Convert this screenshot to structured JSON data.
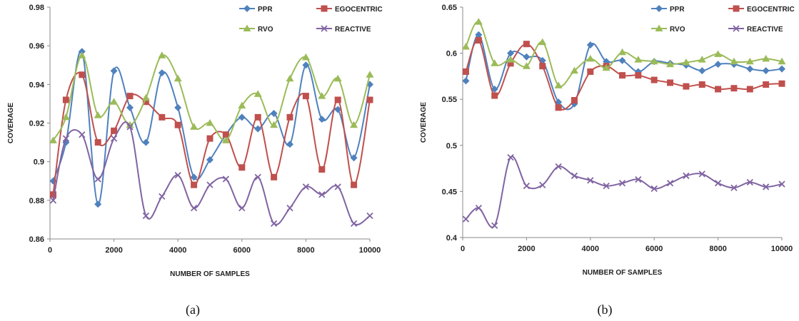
{
  "chart_data": [
    {
      "type": "line",
      "caption": "(a)",
      "xlabel": "NUMBER OF SAMPLES",
      "ylabel": "COVERAGE",
      "xlim": [
        0,
        10000
      ],
      "ylim": [
        0.86,
        0.98
      ],
      "xticks": [
        0,
        2000,
        4000,
        6000,
        8000,
        10000
      ],
      "xtick_labels": [
        "0",
        "2000",
        "4000",
        "6000",
        "8000",
        "10000"
      ],
      "yticks": [
        0.86,
        0.88,
        0.9,
        0.92,
        0.94,
        0.96,
        0.98
      ],
      "ytick_labels": [
        "0.86",
        "0.88",
        "0.9",
        "0.92",
        "0.94",
        "0.96",
        "0.98"
      ],
      "grid": false,
      "legend_position": "top-right",
      "x": [
        100,
        500,
        1000,
        1500,
        2000,
        2500,
        3000,
        3500,
        4000,
        4500,
        5000,
        5500,
        6000,
        6500,
        7000,
        7500,
        8000,
        8500,
        9000,
        9500,
        10000
      ],
      "series": [
        {
          "name": "PPR",
          "color": "#4f81bd",
          "marker": "diamond",
          "values": [
            0.89,
            0.91,
            0.957,
            0.878,
            0.947,
            0.928,
            0.91,
            0.946,
            0.928,
            0.892,
            0.901,
            0.914,
            0.923,
            0.917,
            0.925,
            0.909,
            0.95,
            0.922,
            0.927,
            0.902,
            0.94
          ]
        },
        {
          "name": "EGOCENTRIC",
          "color": "#c0504d",
          "marker": "square",
          "values": [
            0.883,
            0.932,
            0.945,
            0.91,
            0.916,
            0.934,
            0.931,
            0.923,
            0.919,
            0.888,
            0.912,
            0.914,
            0.897,
            0.923,
            0.892,
            0.923,
            0.934,
            0.896,
            0.932,
            0.888,
            0.932
          ]
        },
        {
          "name": "RVO",
          "color": "#9bbb59",
          "marker": "triangle",
          "values": [
            0.911,
            0.923,
            0.955,
            0.924,
            0.931,
            0.919,
            0.933,
            0.955,
            0.943,
            0.918,
            0.92,
            0.911,
            0.929,
            0.935,
            0.919,
            0.943,
            0.954,
            0.934,
            0.943,
            0.919,
            0.945
          ]
        },
        {
          "name": "REACTIVE",
          "color": "#8064a2",
          "marker": "x",
          "values": [
            0.88,
            0.912,
            0.914,
            0.891,
            0.912,
            0.918,
            0.872,
            0.882,
            0.893,
            0.876,
            0.888,
            0.891,
            0.876,
            0.892,
            0.868,
            0.876,
            0.887,
            0.883,
            0.887,
            0.868,
            0.872
          ]
        }
      ]
    },
    {
      "type": "line",
      "caption": "(b)",
      "xlabel": "NUMBER OF SAMPLES",
      "ylabel": "COVERAGE",
      "xlim": [
        0,
        10000
      ],
      "ylim": [
        0.4,
        0.65
      ],
      "xticks": [
        0,
        2000,
        4000,
        6000,
        8000,
        10000
      ],
      "xtick_labels": [
        "0",
        "2000",
        "4000",
        "6000",
        "8000",
        "10000"
      ],
      "yticks": [
        0.4,
        0.45,
        0.5,
        0.55,
        0.6,
        0.65
      ],
      "ytick_labels": [
        "0.4",
        "0.45",
        "0.5",
        "0.55",
        "0.6",
        "0.65"
      ],
      "grid": false,
      "legend_position": "top-right",
      "x": [
        100,
        500,
        1000,
        1500,
        2000,
        2500,
        3000,
        3500,
        4000,
        4500,
        5000,
        5500,
        6000,
        6500,
        7000,
        7500,
        8000,
        8500,
        9000,
        9500,
        10000
      ],
      "series": [
        {
          "name": "PPR",
          "color": "#4f81bd",
          "marker": "diamond",
          "values": [
            0.57,
            0.62,
            0.561,
            0.6,
            0.596,
            0.592,
            0.547,
            0.545,
            0.609,
            0.591,
            0.592,
            0.58,
            0.591,
            0.589,
            0.587,
            0.581,
            0.588,
            0.588,
            0.583,
            0.581,
            0.583
          ]
        },
        {
          "name": "EGOCENTRIC",
          "color": "#c0504d",
          "marker": "square",
          "values": [
            0.58,
            0.614,
            0.554,
            0.589,
            0.61,
            0.586,
            0.541,
            0.549,
            0.58,
            0.586,
            0.576,
            0.576,
            0.571,
            0.568,
            0.564,
            0.566,
            0.561,
            0.562,
            0.561,
            0.566,
            0.567
          ]
        },
        {
          "name": "RVO",
          "color": "#9bbb59",
          "marker": "triangle",
          "values": [
            0.607,
            0.634,
            0.589,
            0.593,
            0.586,
            0.612,
            0.565,
            0.581,
            0.594,
            0.584,
            0.601,
            0.593,
            0.591,
            0.588,
            0.59,
            0.593,
            0.599,
            0.591,
            0.591,
            0.594,
            0.591
          ]
        },
        {
          "name": "REACTIVE",
          "color": "#8064a2",
          "marker": "x",
          "values": [
            0.42,
            0.432,
            0.413,
            0.487,
            0.456,
            0.457,
            0.477,
            0.467,
            0.462,
            0.456,
            0.459,
            0.463,
            0.453,
            0.459,
            0.467,
            0.469,
            0.459,
            0.454,
            0.46,
            0.455,
            0.458
          ]
        }
      ]
    }
  ]
}
